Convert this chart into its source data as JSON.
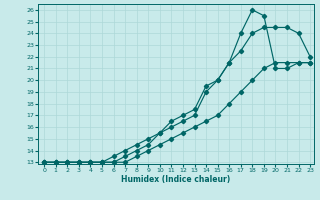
{
  "xlabel": "Humidex (Indice chaleur)",
  "bg_color": "#c8eaea",
  "line_color": "#006666",
  "grid_color": "#add8d8",
  "xlim_min": -0.5,
  "xlim_max": 23.3,
  "ylim_min": 12.85,
  "ylim_max": 26.5,
  "xticks": [
    0,
    1,
    2,
    3,
    4,
    5,
    6,
    7,
    8,
    9,
    10,
    11,
    12,
    13,
    14,
    15,
    16,
    17,
    18,
    19,
    20,
    21,
    22,
    23
  ],
  "yticks": [
    13,
    14,
    15,
    16,
    17,
    18,
    19,
    20,
    21,
    22,
    23,
    24,
    25,
    26
  ],
  "line1_x": [
    0,
    1,
    2,
    3,
    4,
    5,
    6,
    7,
    8,
    9,
    10,
    11,
    12,
    13,
    14,
    15,
    16,
    17,
    18,
    19,
    20,
    21,
    22,
    23
  ],
  "line1_y": [
    13,
    13,
    13,
    13,
    13,
    13,
    13,
    13,
    13.5,
    14,
    14.5,
    15,
    15.5,
    16,
    16.5,
    17,
    18,
    19,
    20,
    21,
    21.5,
    21.5,
    21.5,
    21.5
  ],
  "line2_x": [
    0,
    1,
    2,
    3,
    4,
    5,
    6,
    7,
    8,
    9,
    10,
    11,
    12,
    13,
    14,
    15,
    16,
    17,
    18,
    19,
    20,
    21,
    22,
    23
  ],
  "line2_y": [
    13,
    13,
    13,
    13,
    13,
    13,
    13.5,
    14,
    14.5,
    15,
    15.5,
    16,
    16.5,
    17,
    19,
    20,
    21.5,
    22.5,
    24,
    24.5,
    24.5,
    24.5,
    24,
    22
  ],
  "line3_x": [
    0,
    1,
    2,
    3,
    4,
    5,
    6,
    7,
    8,
    9,
    10,
    11,
    12,
    13,
    14,
    15,
    16,
    17,
    18,
    19,
    20,
    21,
    22,
    23
  ],
  "line3_y": [
    13,
    13,
    13,
    13,
    13,
    13,
    13,
    13.5,
    14,
    14.5,
    15.5,
    16.5,
    17,
    17.5,
    19.5,
    20,
    21.5,
    24,
    26,
    25.5,
    21,
    21,
    21.5,
    21.5
  ]
}
